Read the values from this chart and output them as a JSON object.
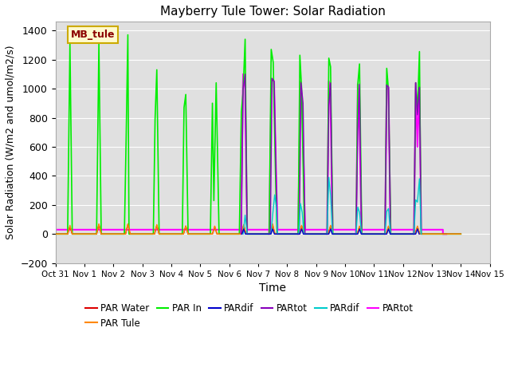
{
  "title": "Mayberry Tule Tower: Solar Radiation",
  "xlabel": "Time",
  "ylabel": "Solar Radiation (W/m2 and umol/m2/s)",
  "ylim": [
    -200,
    1460
  ],
  "yticks": [
    -200,
    0,
    200,
    400,
    600,
    800,
    1000,
    1200,
    1400
  ],
  "xlim_start": 0,
  "xlim_end": 15,
  "xtick_labels": [
    "Oct 31",
    "Nov 1",
    "Nov 2",
    "Nov 3",
    "Nov 4",
    "Nov 5",
    "Nov 6",
    "Nov 7",
    "Nov 8",
    "Nov 9",
    "Nov 10",
    "Nov 11",
    "Nov 12",
    "Nov 13",
    "Nov 14",
    "Nov 15"
  ],
  "bg_color": "#e0e0e0",
  "fig_color": "#ffffff",
  "legend_label": "MB_tule",
  "legend_colors": {
    "PAR Water": "#dd0000",
    "PAR Tule": "#ff8800",
    "PAR In": "#00ee00",
    "PARdif_blue": "#0000cc",
    "PARtot_purple": "#8800bb",
    "PARdif_cyan": "#00cccc",
    "PARtot_magenta": "#ff00ff"
  },
  "PAR_In_peaks": [
    [
      0.0,
      0
    ],
    [
      0.42,
      0
    ],
    [
      0.5,
      1310
    ],
    [
      0.58,
      0
    ],
    [
      1.42,
      0
    ],
    [
      1.5,
      1310
    ],
    [
      1.58,
      0
    ],
    [
      2.38,
      0
    ],
    [
      2.44,
      650
    ],
    [
      2.5,
      1370
    ],
    [
      2.54,
      0
    ],
    [
      3.38,
      0
    ],
    [
      3.44,
      790
    ],
    [
      3.5,
      1130
    ],
    [
      3.58,
      0
    ],
    [
      4.38,
      0
    ],
    [
      4.44,
      870
    ],
    [
      4.5,
      960
    ],
    [
      4.58,
      0
    ],
    [
      5.35,
      0
    ],
    [
      5.42,
      900
    ],
    [
      5.47,
      230
    ],
    [
      5.55,
      1040
    ],
    [
      5.65,
      0
    ],
    [
      6.35,
      0
    ],
    [
      6.42,
      840
    ],
    [
      6.48,
      980
    ],
    [
      6.55,
      1340
    ],
    [
      6.62,
      0
    ],
    [
      7.38,
      0
    ],
    [
      7.45,
      1270
    ],
    [
      7.52,
      1180
    ],
    [
      7.6,
      400
    ],
    [
      7.65,
      0
    ],
    [
      8.38,
      0
    ],
    [
      8.44,
      1230
    ],
    [
      8.5,
      1000
    ],
    [
      8.6,
      0
    ],
    [
      9.38,
      0
    ],
    [
      9.44,
      1210
    ],
    [
      9.5,
      1150
    ],
    [
      9.58,
      0
    ],
    [
      10.38,
      0
    ],
    [
      10.44,
      1030
    ],
    [
      10.5,
      1170
    ],
    [
      10.58,
      0
    ],
    [
      11.38,
      0
    ],
    [
      11.44,
      1140
    ],
    [
      11.5,
      990
    ],
    [
      11.58,
      0
    ],
    [
      12.38,
      0
    ],
    [
      12.44,
      1040
    ],
    [
      12.5,
      840
    ],
    [
      12.57,
      1255
    ],
    [
      12.63,
      0
    ],
    [
      14.0,
      0
    ]
  ],
  "PAR_Water_peaks": [
    [
      0.0,
      0
    ],
    [
      0.42,
      0
    ],
    [
      0.5,
      50
    ],
    [
      0.58,
      0
    ],
    [
      1.42,
      0
    ],
    [
      1.5,
      65
    ],
    [
      1.58,
      0
    ],
    [
      2.42,
      0
    ],
    [
      2.5,
      65
    ],
    [
      2.58,
      0
    ],
    [
      3.42,
      0
    ],
    [
      3.5,
      60
    ],
    [
      3.58,
      0
    ],
    [
      4.42,
      0
    ],
    [
      4.5,
      55
    ],
    [
      4.58,
      0
    ],
    [
      5.42,
      0
    ],
    [
      5.5,
      50
    ],
    [
      5.58,
      0
    ],
    [
      6.42,
      0
    ],
    [
      6.5,
      60
    ],
    [
      6.58,
      0
    ],
    [
      7.42,
      0
    ],
    [
      7.5,
      60
    ],
    [
      7.58,
      0
    ],
    [
      8.42,
      0
    ],
    [
      8.5,
      55
    ],
    [
      8.58,
      0
    ],
    [
      9.42,
      0
    ],
    [
      9.5,
      55
    ],
    [
      9.58,
      0
    ],
    [
      10.42,
      0
    ],
    [
      10.5,
      50
    ],
    [
      10.58,
      0
    ],
    [
      11.42,
      0
    ],
    [
      11.5,
      50
    ],
    [
      11.58,
      0
    ],
    [
      12.42,
      0
    ],
    [
      12.5,
      50
    ],
    [
      12.58,
      0
    ],
    [
      14.0,
      0
    ]
  ],
  "PAR_Tule_peaks": [
    [
      0.0,
      0
    ],
    [
      0.42,
      0
    ],
    [
      0.5,
      60
    ],
    [
      0.58,
      0
    ],
    [
      1.42,
      0
    ],
    [
      1.5,
      70
    ],
    [
      1.58,
      0
    ],
    [
      2.42,
      0
    ],
    [
      2.5,
      70
    ],
    [
      2.58,
      0
    ],
    [
      3.42,
      0
    ],
    [
      3.5,
      65
    ],
    [
      3.58,
      0
    ],
    [
      4.42,
      0
    ],
    [
      4.5,
      55
    ],
    [
      4.58,
      0
    ],
    [
      5.42,
      0
    ],
    [
      5.5,
      55
    ],
    [
      5.58,
      0
    ],
    [
      6.42,
      0
    ],
    [
      6.5,
      65
    ],
    [
      6.58,
      0
    ],
    [
      7.42,
      0
    ],
    [
      7.5,
      70
    ],
    [
      7.58,
      0
    ],
    [
      8.42,
      0
    ],
    [
      8.5,
      60
    ],
    [
      8.58,
      0
    ],
    [
      9.42,
      0
    ],
    [
      9.5,
      60
    ],
    [
      9.58,
      0
    ],
    [
      10.42,
      0
    ],
    [
      10.5,
      55
    ],
    [
      10.58,
      0
    ],
    [
      11.42,
      0
    ],
    [
      11.5,
      55
    ],
    [
      11.58,
      0
    ],
    [
      12.42,
      0
    ],
    [
      12.5,
      55
    ],
    [
      12.58,
      0
    ],
    [
      14.0,
      0
    ]
  ],
  "PARdif_blue_peaks": [
    [
      6.44,
      0
    ],
    [
      6.5,
      35
    ],
    [
      6.56,
      0
    ],
    [
      7.44,
      0
    ],
    [
      7.5,
      35
    ],
    [
      7.56,
      0
    ],
    [
      8.44,
      0
    ],
    [
      8.5,
      35
    ],
    [
      8.56,
      0
    ],
    [
      9.44,
      0
    ],
    [
      9.5,
      35
    ],
    [
      9.56,
      0
    ],
    [
      10.44,
      0
    ],
    [
      10.5,
      35
    ],
    [
      10.56,
      0
    ],
    [
      11.44,
      0
    ],
    [
      11.5,
      35
    ],
    [
      11.56,
      0
    ],
    [
      12.44,
      0
    ],
    [
      12.5,
      35
    ],
    [
      12.56,
      0
    ]
  ],
  "PARtot_purple_peaks": [
    [
      6.42,
      0
    ],
    [
      6.48,
      1000
    ],
    [
      6.55,
      1100
    ],
    [
      6.62,
      0
    ],
    [
      7.42,
      0
    ],
    [
      7.48,
      1070
    ],
    [
      7.55,
      1050
    ],
    [
      7.62,
      400
    ],
    [
      7.67,
      0
    ],
    [
      8.42,
      0
    ],
    [
      8.48,
      1040
    ],
    [
      8.55,
      900
    ],
    [
      8.62,
      0
    ],
    [
      9.38,
      0
    ],
    [
      9.44,
      890
    ],
    [
      9.5,
      1040
    ],
    [
      9.57,
      0
    ],
    [
      10.38,
      0
    ],
    [
      10.44,
      710
    ],
    [
      10.5,
      1030
    ],
    [
      10.57,
      0
    ],
    [
      11.38,
      0
    ],
    [
      11.44,
      1025
    ],
    [
      11.5,
      1010
    ],
    [
      11.57,
      0
    ],
    [
      12.38,
      0
    ],
    [
      12.44,
      1040
    ],
    [
      12.5,
      820
    ],
    [
      12.57,
      1010
    ],
    [
      12.63,
      0
    ]
  ],
  "PARdif_cyan_peaks": [
    [
      6.48,
      0
    ],
    [
      6.55,
      130
    ],
    [
      6.62,
      0
    ],
    [
      7.44,
      0
    ],
    [
      7.5,
      130
    ],
    [
      7.57,
      270
    ],
    [
      7.62,
      200
    ],
    [
      7.67,
      0
    ],
    [
      8.4,
      0
    ],
    [
      8.46,
      210
    ],
    [
      8.52,
      150
    ],
    [
      8.58,
      0
    ],
    [
      9.38,
      0
    ],
    [
      9.44,
      390
    ],
    [
      9.5,
      270
    ],
    [
      9.57,
      0
    ],
    [
      10.38,
      0
    ],
    [
      10.44,
      185
    ],
    [
      10.5,
      150
    ],
    [
      10.57,
      0
    ],
    [
      11.38,
      0
    ],
    [
      11.44,
      155
    ],
    [
      11.5,
      175
    ],
    [
      11.57,
      0
    ],
    [
      12.38,
      0
    ],
    [
      12.44,
      235
    ],
    [
      12.5,
      220
    ],
    [
      12.57,
      380
    ],
    [
      12.63,
      0
    ]
  ],
  "PARtot_magenta_peaks": [
    [
      0.0,
      30
    ],
    [
      6.4,
      30
    ],
    [
      6.4,
      0
    ],
    [
      6.48,
      1100
    ],
    [
      6.55,
      1000
    ],
    [
      6.62,
      30
    ],
    [
      6.62,
      30
    ],
    [
      7.38,
      30
    ],
    [
      7.38,
      0
    ],
    [
      7.46,
      1070
    ],
    [
      7.55,
      1050
    ],
    [
      7.62,
      400
    ],
    [
      7.67,
      30
    ],
    [
      7.67,
      30
    ],
    [
      8.38,
      30
    ],
    [
      8.38,
      0
    ],
    [
      8.46,
      1050
    ],
    [
      8.52,
      900
    ],
    [
      8.62,
      30
    ],
    [
      8.62,
      30
    ],
    [
      9.38,
      30
    ],
    [
      9.38,
      0
    ],
    [
      9.44,
      1050
    ],
    [
      9.5,
      880
    ],
    [
      9.57,
      30
    ],
    [
      9.57,
      30
    ],
    [
      10.38,
      30
    ],
    [
      10.38,
      0
    ],
    [
      10.44,
      1030
    ],
    [
      10.5,
      720
    ],
    [
      10.57,
      30
    ],
    [
      10.57,
      30
    ],
    [
      11.38,
      30
    ],
    [
      11.38,
      0
    ],
    [
      11.44,
      1025
    ],
    [
      11.5,
      1010
    ],
    [
      11.57,
      30
    ],
    [
      11.57,
      30
    ],
    [
      12.38,
      30
    ],
    [
      12.38,
      0
    ],
    [
      12.44,
      1040
    ],
    [
      12.5,
      600
    ],
    [
      12.57,
      1010
    ],
    [
      12.63,
      30
    ],
    [
      12.63,
      30
    ],
    [
      13.38,
      30
    ],
    [
      13.38,
      0
    ],
    [
      13.5,
      0
    ]
  ]
}
